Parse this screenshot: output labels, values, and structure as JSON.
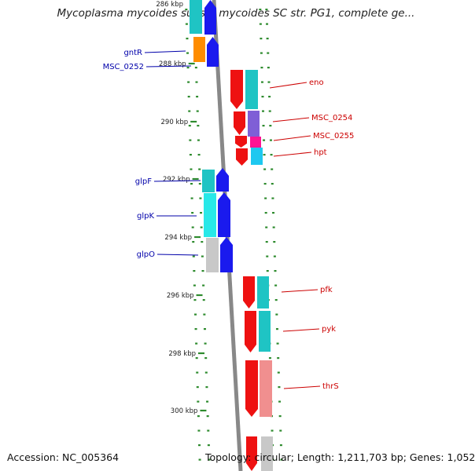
{
  "title": "Mycoplasma mycoides subsp. mycoides SC str. PG1, complete ge...",
  "footer": {
    "accession": "Accession: NC_005364",
    "summary": "Topology: circular; Length: 1,211,703 bp; Genes: 1,052"
  },
  "colors": {
    "backbone": "#888888",
    "tick": "#2e8b2e",
    "reverse_label": "#0000aa",
    "forward_label": "#cc0000"
  },
  "ticks": [
    "288 kbp",
    "290 kbp",
    "292 kbp",
    "294 kbp",
    "296 kbp",
    "298 kbp",
    "300 kbp"
  ],
  "partial_top_tick": "286 kbp",
  "reverse_genes": [
    {
      "name": "gntR",
      "color": "#1a1aee"
    },
    {
      "name": "MSC_0252",
      "color": "#1a1aee"
    },
    {
      "name": "glpF",
      "color": "#1a1aee"
    },
    {
      "name": "glpK",
      "color": "#1a1aee"
    },
    {
      "name": "glpO",
      "color": "#1a1aee"
    }
  ],
  "forward_genes": [
    {
      "name": "eno",
      "color": "#ee1111"
    },
    {
      "name": "MSC_0254",
      "color": "#ee1111"
    },
    {
      "name": "MSC_0255",
      "color": "#ee1111"
    },
    {
      "name": "hpt",
      "color": "#ee1111"
    },
    {
      "name": "pfk",
      "color": "#ee1111"
    },
    {
      "name": "pyk",
      "color": "#ee1111"
    },
    {
      "name": "thrS",
      "color": "#ee1111"
    }
  ],
  "category_colors": [
    "#1fc4c4",
    "#ff8c00",
    "#7f5fd6",
    "#ff1493",
    "#1ec8f0",
    "#28e8e8",
    "#c8c8c8",
    "#f08f8f"
  ]
}
